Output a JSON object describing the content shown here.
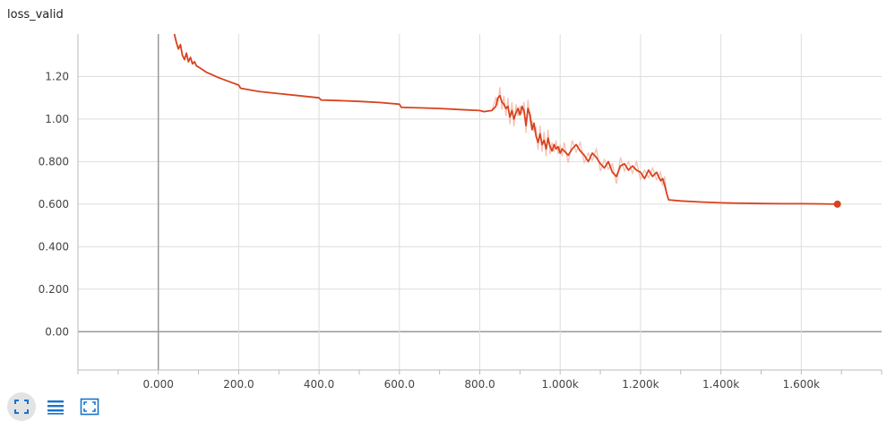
{
  "card": {
    "title": "loss_valid"
  },
  "toolbar": [
    {
      "name": "fit-domain-button",
      "icon": "fullscreen-icon",
      "active": true
    },
    {
      "name": "toggle-log-scale-button",
      "icon": "list-icon",
      "active": false
    },
    {
      "name": "fit-to-data-button",
      "icon": "fit-to-data-icon",
      "active": false
    }
  ],
  "colors": {
    "line": "#d8431f",
    "smoothed_raw": "#f3c2b3",
    "grid": "#dddddd",
    "axis": "#999999"
  },
  "chart_data": {
    "type": "line",
    "title": "loss_valid",
    "xlabel": "",
    "ylabel": "",
    "xlim": [
      -200,
      1800
    ],
    "ylim": [
      -0.18,
      1.4
    ],
    "x_ticks": [
      0,
      200,
      400,
      600,
      800,
      1000,
      1200,
      1400,
      1600
    ],
    "x_tick_labels": [
      "0.000",
      "200.0",
      "400.0",
      "600.0",
      "800.0",
      "1.000k",
      "1.200k",
      "1.400k",
      "1.600k"
    ],
    "y_ticks": [
      0,
      0.2,
      0.4,
      0.6,
      0.8,
      1.0,
      1.2
    ],
    "y_tick_labels": [
      "0.00",
      "0.200",
      "0.400",
      "0.600",
      "0.800",
      "1.00",
      "1.20"
    ],
    "grid": true,
    "series": [
      {
        "x": [
          40,
          45,
          50,
          55,
          60,
          65,
          70,
          75,
          80,
          85,
          90,
          95,
          100,
          120,
          150,
          200,
          205,
          250,
          300,
          350,
          400,
          405,
          450,
          500,
          550,
          600,
          605,
          650,
          700,
          750,
          800,
          810,
          830,
          840,
          845,
          850,
          855,
          860,
          865,
          870,
          875,
          880,
          885,
          890,
          895,
          900,
          905,
          910,
          915,
          920,
          925,
          930,
          935,
          940,
          945,
          950,
          955,
          960,
          965,
          970,
          975,
          980,
          985,
          990,
          995,
          1000,
          1005,
          1010,
          1020,
          1030,
          1040,
          1050,
          1060,
          1070,
          1080,
          1090,
          1100,
          1110,
          1120,
          1130,
          1140,
          1150,
          1160,
          1170,
          1180,
          1190,
          1200,
          1210,
          1220,
          1230,
          1240,
          1250,
          1255,
          1260,
          1265,
          1270,
          1300,
          1350,
          1400,
          1450,
          1500,
          1550,
          1600,
          1650,
          1690
        ],
        "y": [
          1.4,
          1.36,
          1.33,
          1.35,
          1.3,
          1.28,
          1.31,
          1.27,
          1.29,
          1.26,
          1.27,
          1.25,
          1.245,
          1.22,
          1.195,
          1.16,
          1.145,
          1.13,
          1.12,
          1.11,
          1.1,
          1.09,
          1.087,
          1.083,
          1.078,
          1.07,
          1.055,
          1.053,
          1.05,
          1.045,
          1.04,
          1.035,
          1.04,
          1.06,
          1.1,
          1.11,
          1.08,
          1.07,
          1.05,
          1.06,
          1.01,
          1.04,
          1.0,
          1.03,
          1.05,
          1.02,
          1.06,
          1.04,
          0.97,
          1.05,
          1.02,
          0.95,
          0.98,
          0.92,
          0.89,
          0.93,
          0.88,
          0.9,
          0.86,
          0.91,
          0.87,
          0.85,
          0.88,
          0.86,
          0.87,
          0.84,
          0.86,
          0.85,
          0.83,
          0.86,
          0.88,
          0.85,
          0.83,
          0.8,
          0.84,
          0.82,
          0.79,
          0.77,
          0.8,
          0.75,
          0.73,
          0.78,
          0.79,
          0.76,
          0.78,
          0.76,
          0.75,
          0.72,
          0.76,
          0.73,
          0.75,
          0.71,
          0.72,
          0.69,
          0.65,
          0.62,
          0.615,
          0.61,
          0.606,
          0.604,
          0.603,
          0.602,
          0.602,
          0.601,
          0.6
        ]
      }
    ]
  }
}
